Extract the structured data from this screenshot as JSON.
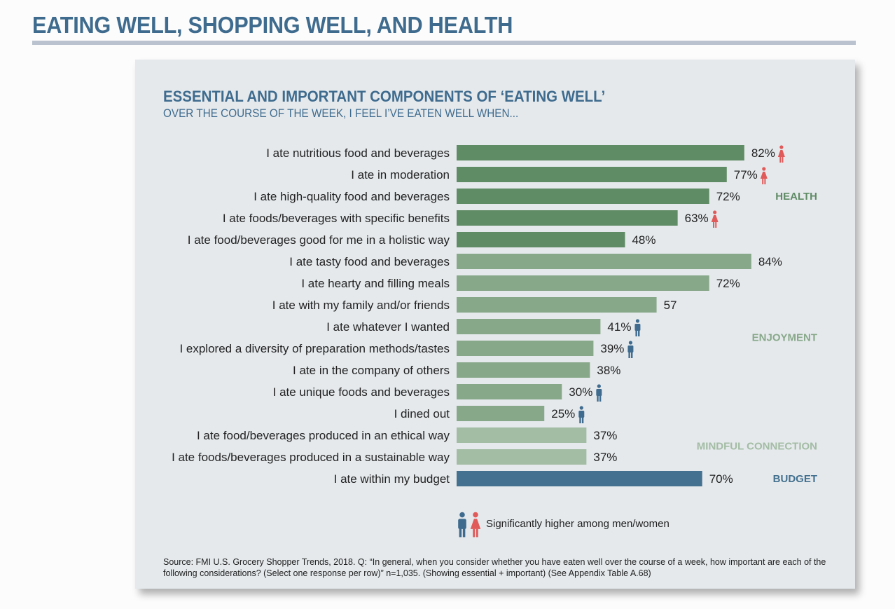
{
  "page_title": "EATING WELL, SHOPPING WELL, AND HEALTH",
  "legend": {
    "text": "Significantly higher among men/women",
    "icons": [
      "man-icon",
      "woman-icon"
    ]
  },
  "source": "Source: FMI U.S. Grocery Shopper Trends, 2018. Q: “In general, when you consider whether you have eaten well over the course of a week, how important are each of the following considerations? (Select one response per row)” n=1,035. (Showing essential + important) (See Appendix Table A.68)",
  "colors": {
    "health": "#5f8b65",
    "enjoyment": "#88a88a",
    "mindful": "#a3bca4",
    "budget": "#44718f",
    "men": "#3e6b8e",
    "women": "#e15a5a",
    "title": "#3e6b8e"
  },
  "chart_data": {
    "type": "bar",
    "orientation": "horizontal",
    "title": "ESSENTIAL AND IMPORTANT COMPONENTS OF ‘EATING WELL’",
    "subtitle": "OVER THE COURSE OF THE WEEK, I FEEL I’VE EATEN WELL WHEN...",
    "xlabel": "",
    "ylabel": "",
    "xlim": [
      0,
      100
    ],
    "grid": false,
    "legend_position": "bottom",
    "categories": [
      "I ate nutritious food and beverages",
      "I ate in moderation",
      "I ate high-quality food and beverages",
      "I ate foods/beverages with specific benefits",
      "I ate food/beverages good for me in a holistic way",
      "I ate tasty food and beverages",
      "I ate hearty and filling meals",
      "I ate with my family and/or friends",
      "I ate whatever I wanted",
      "I explored a diversity of preparation methods/tastes",
      "I ate in the company of others",
      "I ate unique foods and beverages",
      "I dined out",
      "I ate food/beverages produced in an ethical way",
      "I ate foods/beverages produced in a sustainable way",
      "I ate within my budget"
    ],
    "values": [
      82,
      77,
      72,
      63,
      48,
      84,
      72,
      57,
      41,
      39,
      38,
      30,
      25,
      37,
      37,
      70
    ],
    "value_labels": [
      "82%",
      "77%",
      "72%",
      "63%",
      "48%",
      "84%",
      "72%",
      "57",
      "41%",
      "39%",
      "38%",
      "30%",
      "25%",
      "37%",
      "37%",
      "70%"
    ],
    "groups": [
      "health",
      "health",
      "health",
      "health",
      "health",
      "enjoyment",
      "enjoyment",
      "enjoyment",
      "enjoyment",
      "enjoyment",
      "enjoyment",
      "enjoyment",
      "enjoyment",
      "mindful",
      "mindful",
      "budget"
    ],
    "significance": [
      "women",
      "women",
      "",
      "women",
      "",
      "",
      "",
      "",
      "men",
      "men",
      "",
      "men",
      "men",
      "",
      "",
      ""
    ],
    "group_labels": [
      {
        "key": "health",
        "text": "HEALTH",
        "first": 0,
        "last": 4
      },
      {
        "key": "enjoyment",
        "text": "ENJOYMENT",
        "first": 5,
        "last": 12
      },
      {
        "key": "mindful",
        "text": "MINDFUL CONNECTION",
        "first": 13,
        "last": 14
      },
      {
        "key": "budget",
        "text": "BUDGET",
        "first": 15,
        "last": 15
      }
    ]
  }
}
